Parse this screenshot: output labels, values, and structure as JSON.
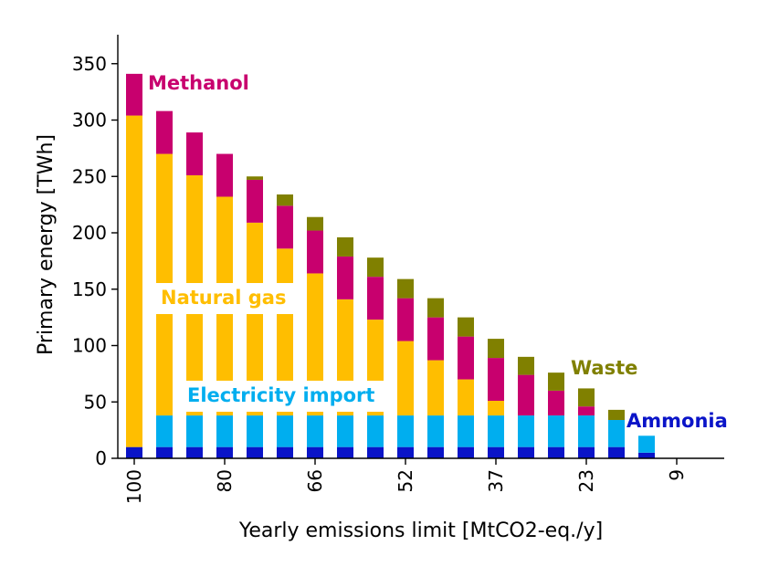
{
  "chart_data": {
    "type": "bar",
    "stacked": true,
    "xlabel": "Yearly emissions limit [MtCO2-eq./y]",
    "ylabel": "Primary energy [TWh]",
    "ylim": [
      0,
      375
    ],
    "yticks": [
      0,
      50,
      100,
      150,
      200,
      250,
      300,
      350
    ],
    "categories": [
      "100",
      "94",
      "87",
      "80",
      "73",
      "66",
      "66",
      "59",
      "52",
      "52",
      "44",
      "44",
      "37",
      "30",
      "30",
      "23",
      "23",
      "16",
      "9",
      "9"
    ],
    "x_tick_labels": [
      {
        "index": 0,
        "label": "100"
      },
      {
        "index": 3,
        "label": "80"
      },
      {
        "index": 6,
        "label": "66"
      },
      {
        "index": 9,
        "label": "52"
      },
      {
        "index": 12,
        "label": "37"
      },
      {
        "index": 15,
        "label": "23"
      },
      {
        "index": 18,
        "label": "9"
      }
    ],
    "series": [
      {
        "name": "Ammonia",
        "color": "#0a14c8",
        "values": [
          10,
          10,
          10,
          10,
          10,
          10,
          10,
          10,
          10,
          10,
          10,
          10,
          10,
          10,
          10,
          10,
          10,
          5,
          0,
          0
        ]
      },
      {
        "name": "Electricity import",
        "color": "#00aeef",
        "values": [
          0,
          28,
          28,
          28,
          28,
          28,
          28,
          28,
          28,
          28,
          28,
          28,
          28,
          28,
          28,
          28,
          24,
          15,
          0,
          0
        ]
      },
      {
        "name": "Natural gas",
        "color": "#ffbe00",
        "values": [
          294,
          232,
          213,
          194,
          171,
          148,
          126,
          103,
          85,
          66,
          49,
          32,
          13,
          0,
          0,
          0,
          0,
          0,
          0,
          0
        ]
      },
      {
        "name": "Methanol",
        "color": "#c8006e",
        "values": [
          37,
          38,
          38,
          38,
          38,
          38,
          38,
          38,
          38,
          38,
          38,
          38,
          38,
          36,
          22,
          8,
          0,
          0,
          0,
          0
        ]
      },
      {
        "name": "Waste",
        "color": "#808000",
        "values": [
          0,
          0,
          0,
          0,
          3,
          10,
          12,
          17,
          17,
          17,
          17,
          17,
          17,
          16,
          16,
          16,
          9,
          0,
          0,
          0
        ]
      }
    ],
    "legend": "inline labels",
    "grid": false
  },
  "labels": {
    "methanol": "Methanol",
    "natural_gas": "Natural gas",
    "electricity": "Electricity import",
    "waste": "Waste",
    "ammonia": "Ammonia"
  }
}
